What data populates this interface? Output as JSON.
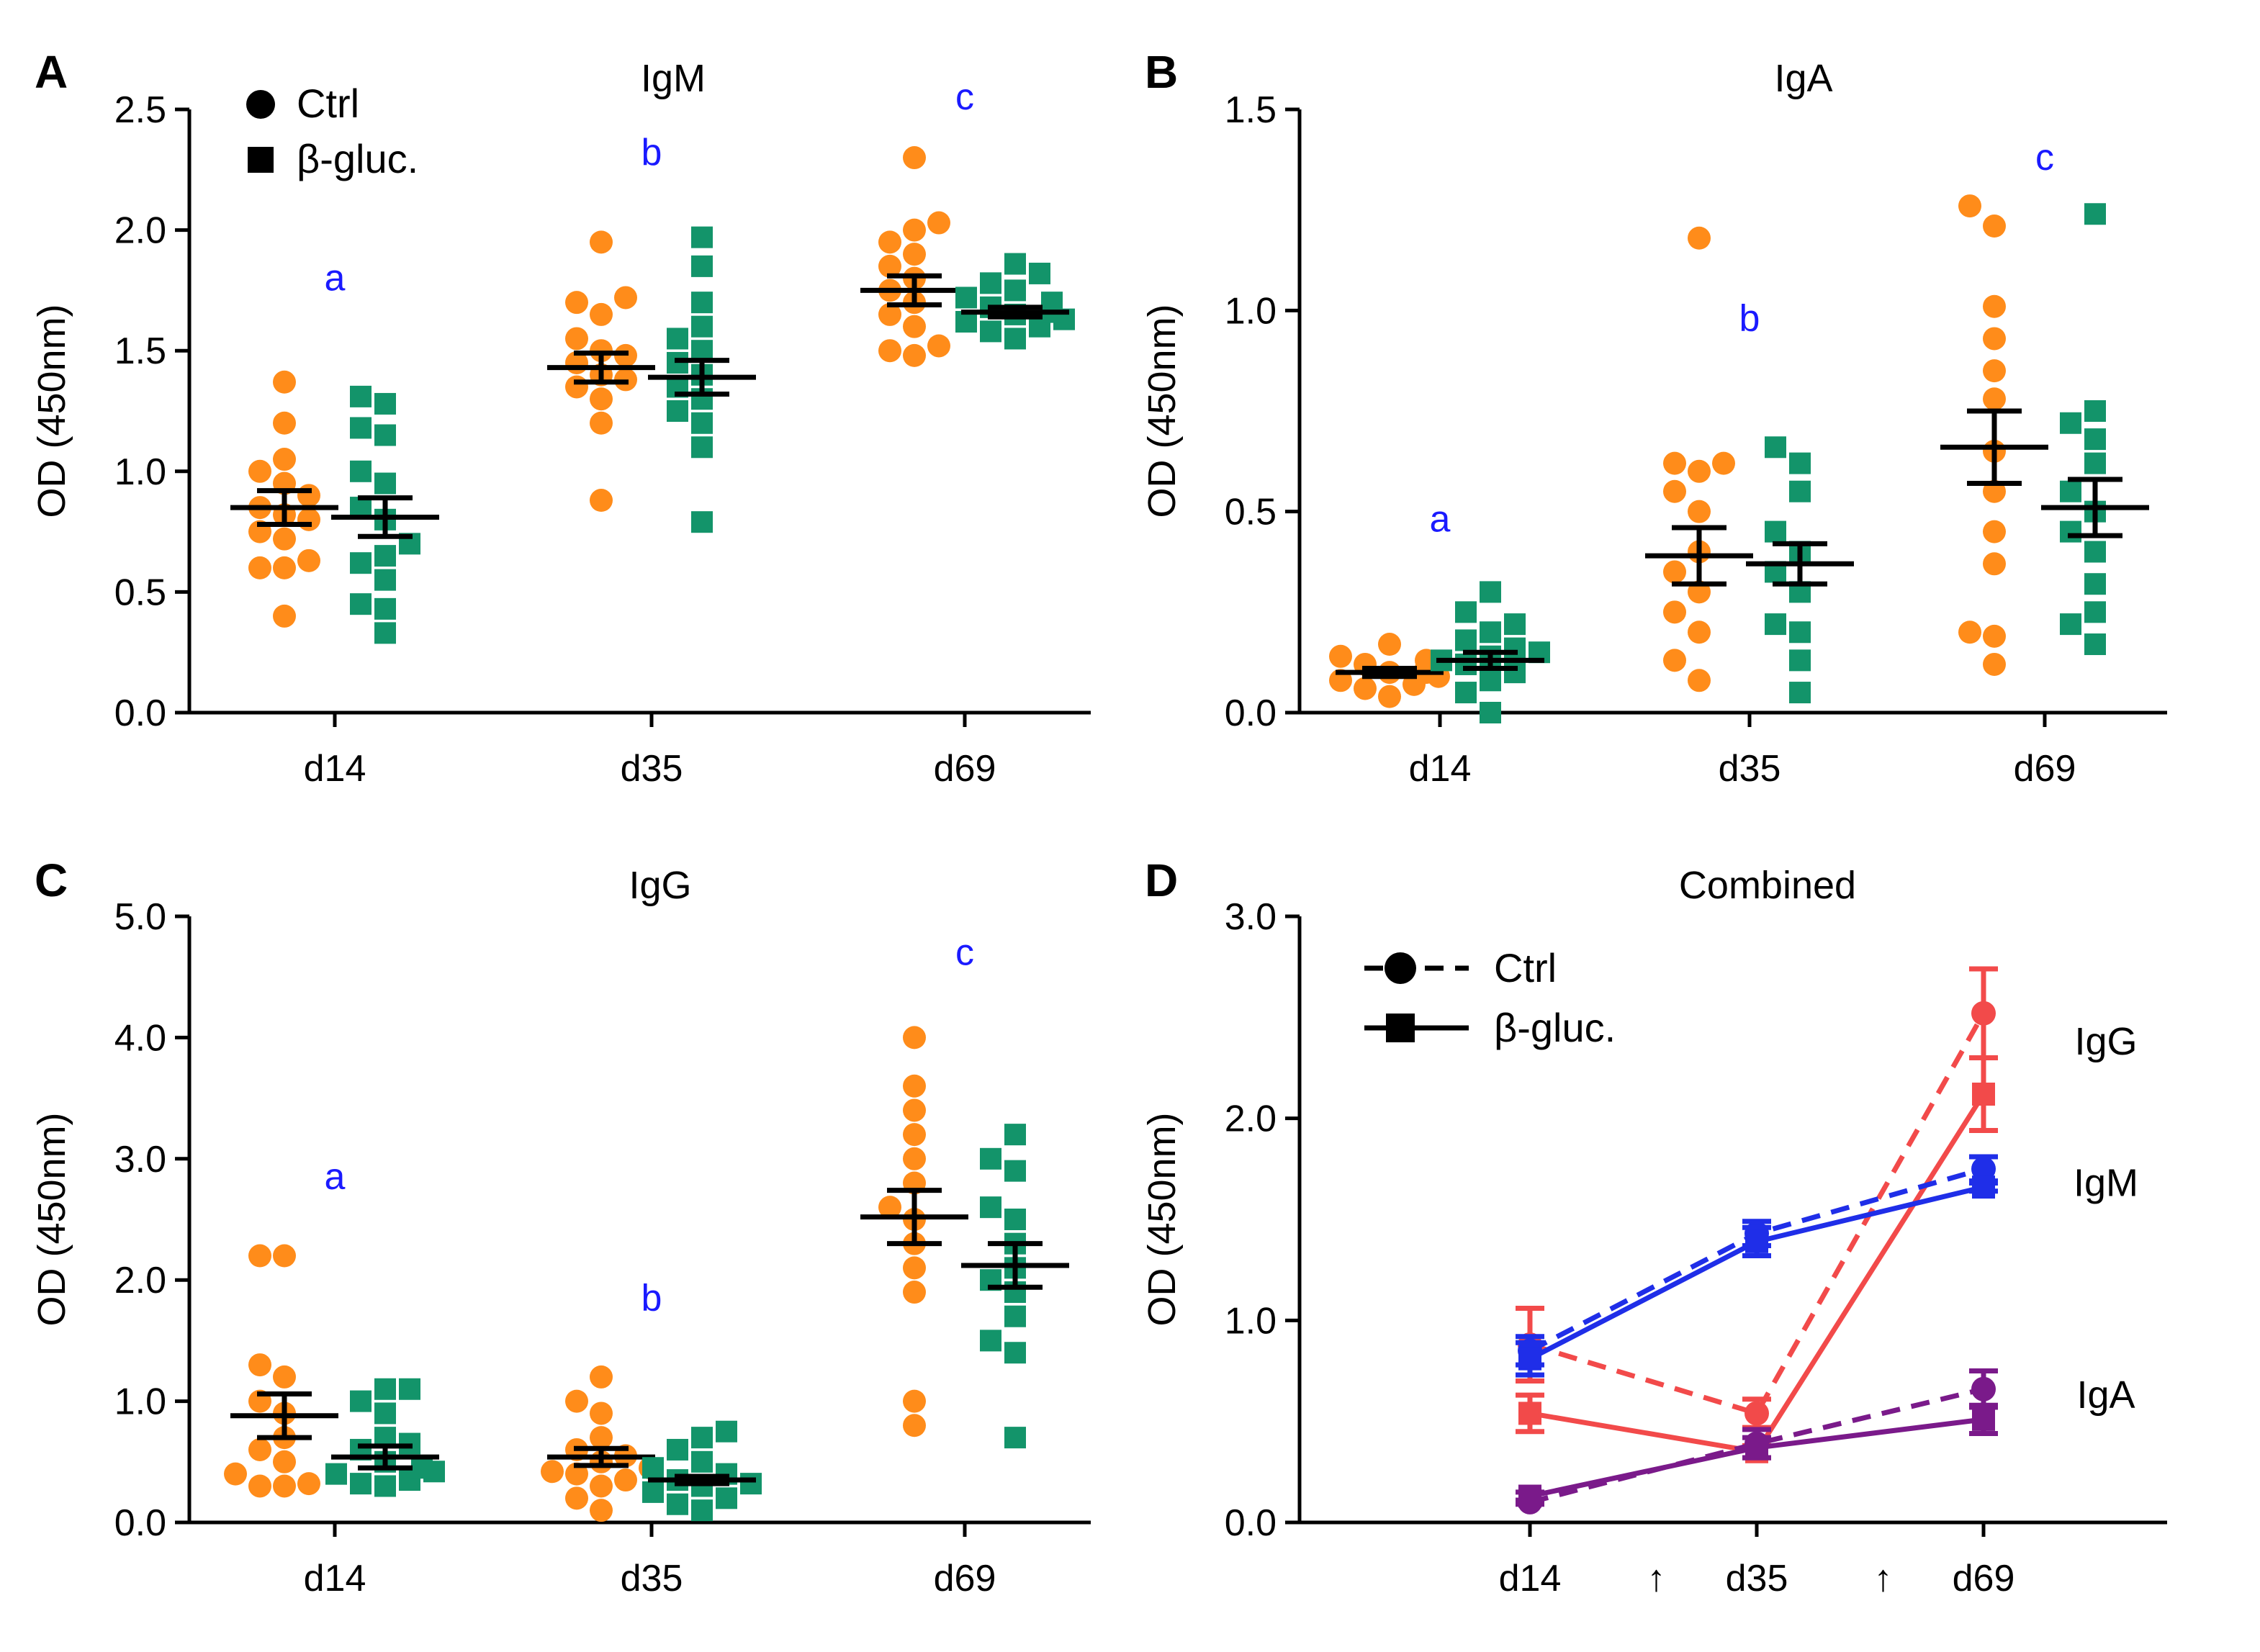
{
  "figure": {
    "ylabel": "OD (450nm)",
    "colors": {
      "ctrl": "#ff8c1a",
      "bgluc": "#13946a",
      "letters": "#1a1aff",
      "IgG": "#f24a4a",
      "IgM": "#1f2ee8",
      "IgA": "#7a1a8a",
      "bar": "#000000"
    }
  },
  "chart_data": [
    {
      "panel": "A",
      "type": "scatter",
      "title": "IgM",
      "ylabel": "OD (450nm)",
      "ylim": [
        0,
        2.5
      ],
      "yticks": [
        "0.0",
        "0.5",
        "1.0",
        "1.5",
        "2.0",
        "2.5"
      ],
      "categories": [
        "d14",
        "d35",
        "d69"
      ],
      "legend": {
        "ctrl": "Ctrl",
        "bgluc": "β-gluc."
      },
      "sig_letters": [
        {
          "group": 0,
          "letter": "a",
          "y": 1.75
        },
        {
          "group": 1,
          "letter": "b",
          "y": 2.27
        },
        {
          "group": 2,
          "letter": "c",
          "y": 2.5
        }
      ],
      "series": [
        {
          "name": "Ctrl",
          "group": 0,
          "mean": 0.85,
          "sem": 0.07,
          "points": [
            0.4,
            0.6,
            0.6,
            0.63,
            0.72,
            0.75,
            0.8,
            0.82,
            0.85,
            0.9,
            0.95,
            1.0,
            1.05,
            1.2,
            1.37
          ]
        },
        {
          "name": "β-gluc.",
          "group": 0,
          "mean": 0.81,
          "sem": 0.08,
          "points": [
            0.33,
            0.43,
            0.45,
            0.55,
            0.62,
            0.65,
            0.7,
            0.8,
            0.85,
            0.95,
            1.0,
            1.15,
            1.18,
            1.28,
            1.31
          ]
        },
        {
          "name": "Ctrl",
          "group": 1,
          "mean": 1.43,
          "sem": 0.06,
          "points": [
            0.88,
            1.2,
            1.3,
            1.35,
            1.38,
            1.4,
            1.45,
            1.48,
            1.5,
            1.55,
            1.65,
            1.7,
            1.72,
            1.95
          ]
        },
        {
          "name": "β-gluc.",
          "group": 1,
          "mean": 1.39,
          "sem": 0.07,
          "points": [
            0.79,
            1.1,
            1.2,
            1.25,
            1.3,
            1.35,
            1.4,
            1.45,
            1.5,
            1.55,
            1.6,
            1.7,
            1.85,
            1.97
          ]
        },
        {
          "name": "Ctrl",
          "group": 2,
          "mean": 1.75,
          "sem": 0.06,
          "points": [
            1.48,
            1.5,
            1.52,
            1.6,
            1.65,
            1.7,
            1.75,
            1.8,
            1.85,
            1.9,
            1.95,
            2.0,
            2.03,
            2.3
          ]
        },
        {
          "name": "β-gluc.",
          "group": 2,
          "mean": 1.66,
          "sem": 0.02,
          "points": [
            1.55,
            1.58,
            1.6,
            1.62,
            1.63,
            1.65,
            1.66,
            1.68,
            1.7,
            1.72,
            1.75,
            1.78,
            1.82,
            1.86
          ]
        }
      ]
    },
    {
      "panel": "B",
      "type": "scatter",
      "title": "IgA",
      "ylabel": "OD (450nm)",
      "ylim": [
        0,
        1.5
      ],
      "yticks": [
        "0.0",
        "0.5",
        "1.0",
        "1.5"
      ],
      "categories": [
        "d14",
        "d35",
        "d69"
      ],
      "sig_letters": [
        {
          "group": 0,
          "letter": "a",
          "y": 0.45
        },
        {
          "group": 1,
          "letter": "b",
          "y": 0.95
        },
        {
          "group": 2,
          "letter": "c",
          "y": 1.35
        }
      ],
      "series": [
        {
          "name": "Ctrl",
          "group": 0,
          "mean": 0.1,
          "sem": 0.01,
          "points": [
            0.04,
            0.06,
            0.07,
            0.08,
            0.09,
            0.1,
            0.1,
            0.11,
            0.12,
            0.13,
            0.14,
            0.17
          ]
        },
        {
          "name": "β-gluc.",
          "group": 0,
          "mean": 0.13,
          "sem": 0.02,
          "points": [
            0.0,
            0.05,
            0.08,
            0.1,
            0.12,
            0.13,
            0.14,
            0.15,
            0.16,
            0.18,
            0.2,
            0.22,
            0.25,
            0.3
          ]
        },
        {
          "name": "Ctrl",
          "group": 1,
          "mean": 0.39,
          "sem": 0.07,
          "points": [
            0.08,
            0.13,
            0.2,
            0.25,
            0.3,
            0.35,
            0.4,
            0.5,
            0.55,
            0.6,
            0.62,
            0.62,
            1.18
          ]
        },
        {
          "name": "β-gluc.",
          "group": 1,
          "mean": 0.37,
          "sem": 0.05,
          "points": [
            0.05,
            0.13,
            0.2,
            0.22,
            0.3,
            0.35,
            0.4,
            0.45,
            0.55,
            0.62,
            0.66
          ]
        },
        {
          "name": "Ctrl",
          "group": 2,
          "mean": 0.66,
          "sem": 0.09,
          "points": [
            0.12,
            0.19,
            0.2,
            0.37,
            0.45,
            0.55,
            0.65,
            0.78,
            0.85,
            0.93,
            1.01,
            1.21,
            1.26
          ]
        },
        {
          "name": "β-gluc.",
          "group": 2,
          "mean": 0.51,
          "sem": 0.07,
          "points": [
            0.17,
            0.22,
            0.25,
            0.32,
            0.4,
            0.45,
            0.5,
            0.55,
            0.62,
            0.68,
            0.72,
            0.75,
            1.24
          ]
        }
      ]
    },
    {
      "panel": "C",
      "type": "scatter",
      "title": "IgG",
      "ylabel": "OD (450nm)",
      "ylim": [
        0,
        5
      ],
      "yticks": [
        "0.0",
        "1.0",
        "2.0",
        "3.0",
        "4.0",
        "5.0"
      ],
      "categories": [
        "d14",
        "d35",
        "d69"
      ],
      "sig_letters": [
        {
          "group": 0,
          "letter": "a",
          "y": 2.75
        },
        {
          "group": 1,
          "letter": "b",
          "y": 1.75
        },
        {
          "group": 2,
          "letter": "c",
          "y": 4.6
        }
      ],
      "series": [
        {
          "name": "Ctrl",
          "group": 0,
          "mean": 0.88,
          "sem": 0.18,
          "points": [
            0.3,
            0.3,
            0.32,
            0.4,
            0.5,
            0.6,
            0.7,
            0.9,
            1.0,
            1.2,
            1.3,
            2.2,
            2.2
          ]
        },
        {
          "name": "β-gluc.",
          "group": 0,
          "mean": 0.54,
          "sem": 0.09,
          "points": [
            0.3,
            0.32,
            0.35,
            0.4,
            0.42,
            0.45,
            0.5,
            0.6,
            0.65,
            0.7,
            0.9,
            1.0,
            1.1,
            1.1
          ]
        },
        {
          "name": "Ctrl",
          "group": 1,
          "mean": 0.54,
          "sem": 0.07,
          "points": [
            0.1,
            0.2,
            0.3,
            0.35,
            0.4,
            0.42,
            0.45,
            0.5,
            0.55,
            0.6,
            0.7,
            0.9,
            1.0,
            1.2
          ]
        },
        {
          "name": "β-gluc.",
          "group": 1,
          "mean": 0.35,
          "sem": 0.03,
          "points": [
            0.1,
            0.15,
            0.2,
            0.25,
            0.3,
            0.32,
            0.35,
            0.4,
            0.45,
            0.5,
            0.6,
            0.7,
            0.75
          ]
        },
        {
          "name": "Ctrl",
          "group": 2,
          "mean": 2.52,
          "sem": 0.22,
          "points": [
            0.8,
            1.0,
            1.9,
            2.1,
            2.3,
            2.5,
            2.6,
            2.8,
            3.0,
            3.2,
            3.4,
            3.6,
            4.0
          ]
        },
        {
          "name": "β-gluc.",
          "group": 2,
          "mean": 2.12,
          "sem": 0.18,
          "points": [
            0.7,
            1.4,
            1.5,
            1.7,
            1.9,
            2.0,
            2.1,
            2.3,
            2.5,
            2.6,
            2.9,
            3.0,
            3.2
          ]
        }
      ]
    },
    {
      "panel": "D",
      "type": "line",
      "title": "Combined",
      "ylabel": "OD (450nm)",
      "ylim": [
        0,
        3
      ],
      "yticks": [
        "0.0",
        "1.0",
        "2.0",
        "3.0"
      ],
      "categories": [
        "d14",
        "d35",
        "d69"
      ],
      "arrows": [
        "↑",
        "↑"
      ],
      "legend": {
        "ctrl": "Ctrl",
        "bgluc": "β-gluc."
      },
      "series": [
        {
          "name": "IgG",
          "group": "Ctrl",
          "style": "dashed",
          "marker": "circle",
          "values": [
            0.88,
            0.54,
            2.52
          ],
          "sem": [
            0.18,
            0.07,
            0.22
          ]
        },
        {
          "name": "IgG",
          "group": "β-gluc.",
          "style": "solid",
          "marker": "square",
          "values": [
            0.54,
            0.35,
            2.12
          ],
          "sem": [
            0.09,
            0.03,
            0.18
          ]
        },
        {
          "name": "IgM",
          "group": "Ctrl",
          "style": "dashed",
          "marker": "circle",
          "values": [
            0.85,
            1.43,
            1.75
          ],
          "sem": [
            0.07,
            0.06,
            0.06
          ]
        },
        {
          "name": "IgM",
          "group": "β-gluc.",
          "style": "solid",
          "marker": "square",
          "values": [
            0.81,
            1.39,
            1.66
          ],
          "sem": [
            0.08,
            0.07,
            0.02
          ]
        },
        {
          "name": "IgA",
          "group": "Ctrl",
          "style": "dashed",
          "marker": "circle",
          "values": [
            0.1,
            0.39,
            0.66
          ],
          "sem": [
            0.01,
            0.07,
            0.09
          ]
        },
        {
          "name": "IgA",
          "group": "β-gluc.",
          "style": "solid",
          "marker": "square",
          "values": [
            0.13,
            0.37,
            0.51
          ],
          "sem": [
            0.02,
            0.05,
            0.07
          ]
        }
      ],
      "series_labels": [
        {
          "name": "IgG",
          "y": 2.38
        },
        {
          "name": "IgM",
          "y": 1.68
        },
        {
          "name": "IgA",
          "y": 0.63
        }
      ]
    }
  ]
}
